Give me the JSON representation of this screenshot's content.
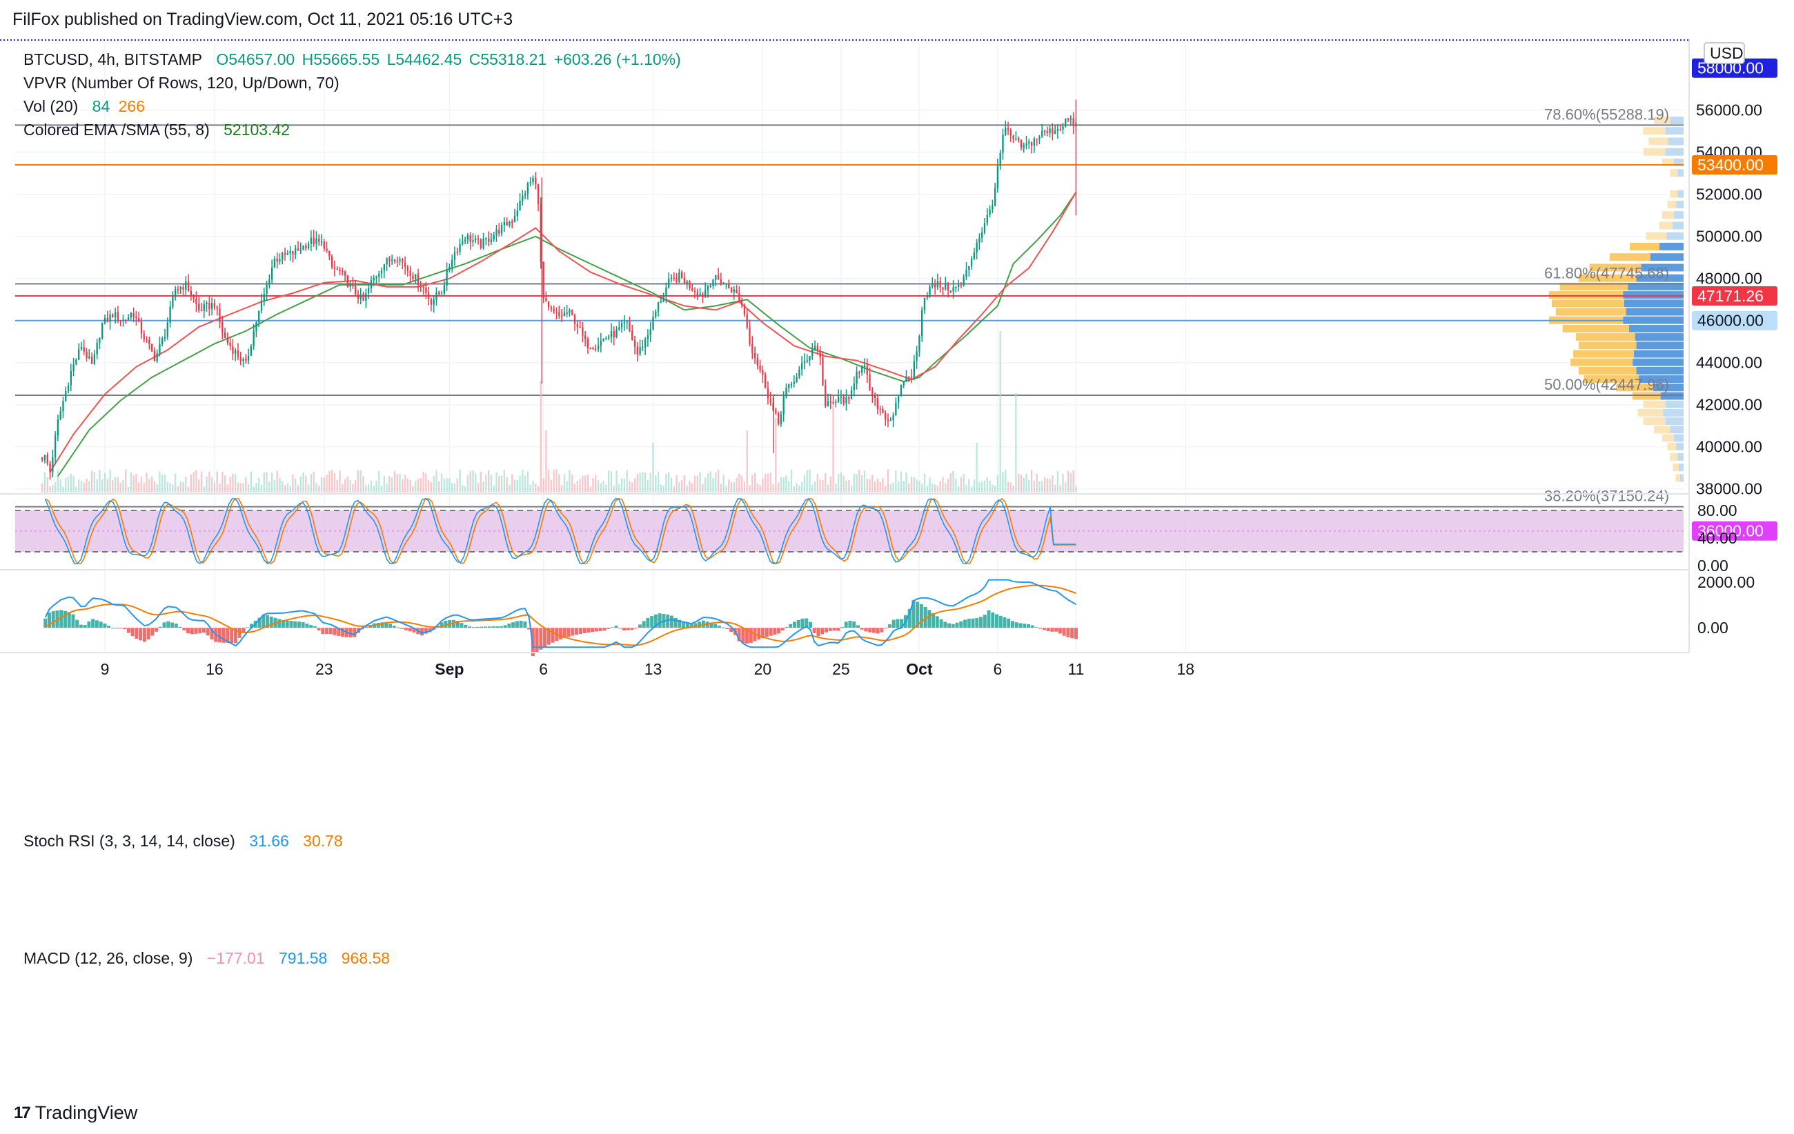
{
  "publisher": "FilFox published on TradingView.com, Oct 11, 2021 05:16 UTC+3",
  "footer": {
    "brand": "TradingView"
  },
  "colors": {
    "up": "#089981",
    "down": "#f23645",
    "ema": "#ef5350",
    "sma": "#43a047",
    "stoch_bg": "#e1bee7"
  },
  "legend": {
    "symbol": "BTCUSD, 4h, BITSTAMP",
    "o": "O54657.00",
    "h": "H55665.55",
    "l": "L54462.45",
    "c": "C55318.21",
    "chg": "+603.26 (+1.10%)",
    "vpvr": "VPVR (Number Of Rows, 120, Up/Down, 70)",
    "vol_label": "Vol (20)",
    "vol_a": "84",
    "vol_b": "266",
    "ema_label": "Colored EMA /SMA (55, 8)",
    "ema_val": "52103.42",
    "stoch_label": "Stoch RSI (3, 3, 14, 14, close)",
    "stoch_k": "31.66",
    "stoch_d": "30.78",
    "macd_label": "MACD (12, 26, close, 9)",
    "macd_hist": "−177.01",
    "macd_line": "791.58",
    "macd_signal": "968.58"
  },
  "chart_data": {
    "type": "candlestick",
    "symbol": "BTCUSD",
    "timeframe": "4h",
    "exchange": "BITSTAMP",
    "currency": "USD",
    "ylim": [
      36000,
      58000
    ],
    "y_ticks": [
      "56000.00",
      "54000.00",
      "52000.00",
      "50000.00",
      "48000.00",
      "46000.00",
      "44000.00",
      "42000.00",
      "40000.00",
      "38000.00"
    ],
    "x_ticks": [
      {
        "label": "9",
        "day": 9
      },
      {
        "label": "16",
        "day": 16
      },
      {
        "label": "23",
        "day": 23
      },
      {
        "label": "Sep",
        "day": 31
      },
      {
        "label": "6",
        "day": 37
      },
      {
        "label": "13",
        "day": 44
      },
      {
        "label": "20",
        "day": 51
      },
      {
        "label": "25",
        "day": 56
      },
      {
        "label": "Oct",
        "day": 61
      },
      {
        "label": "6",
        "day": 66
      },
      {
        "label": "11",
        "day": 71
      },
      {
        "label": "18",
        "day": 78
      }
    ],
    "price_path": [
      [
        5.2,
        39500
      ],
      [
        5.5,
        38800
      ],
      [
        6,
        41200
      ],
      [
        6.8,
        43500
      ],
      [
        7.5,
        44800
      ],
      [
        8.2,
        43800
      ],
      [
        8.8,
        45800
      ],
      [
        9.5,
        46300
      ],
      [
        10.2,
        46000
      ],
      [
        10.8,
        46400
      ],
      [
        11.5,
        45200
      ],
      [
        12.2,
        44200
      ],
      [
        12.8,
        45300
      ],
      [
        13.5,
        47500
      ],
      [
        14.2,
        47700
      ],
      [
        15,
        46500
      ],
      [
        16,
        46800
      ],
      [
        16.6,
        45200
      ],
      [
        17.2,
        44600
      ],
      [
        18,
        43900
      ],
      [
        18.6,
        45800
      ],
      [
        19.2,
        47300
      ],
      [
        19.8,
        48900
      ],
      [
        21,
        49200
      ],
      [
        22.2,
        49800
      ],
      [
        23,
        49600
      ],
      [
        23.5,
        48500
      ],
      [
        24,
        48300
      ],
      [
        24.8,
        47500
      ],
      [
        25.5,
        46900
      ],
      [
        26,
        47800
      ],
      [
        26.8,
        48700
      ],
      [
        27.6,
        49100
      ],
      [
        28.5,
        48300
      ],
      [
        29.3,
        47600
      ],
      [
        29.8,
        46900
      ],
      [
        30.5,
        47400
      ],
      [
        31.2,
        49100
      ],
      [
        32,
        50000
      ],
      [
        33,
        49600
      ],
      [
        34,
        50200
      ],
      [
        35,
        50800
      ],
      [
        36,
        52400
      ],
      [
        36.4,
        52800
      ],
      [
        36.7,
        51600
      ],
      [
        36.9,
        47200
      ],
      [
        37.3,
        46500
      ],
      [
        38,
        46200
      ],
      [
        38.6,
        46400
      ],
      [
        39.1,
        45900
      ],
      [
        39.7,
        44900
      ],
      [
        40.3,
        44800
      ],
      [
        41,
        45200
      ],
      [
        41.6,
        45400
      ],
      [
        42.3,
        45900
      ],
      [
        43,
        44400
      ],
      [
        43.6,
        45200
      ],
      [
        44.3,
        46700
      ],
      [
        45,
        47800
      ],
      [
        45.7,
        48100
      ],
      [
        46.4,
        47600
      ],
      [
        47.1,
        47200
      ],
      [
        47.8,
        48000
      ],
      [
        48.3,
        47900
      ],
      [
        49,
        47500
      ],
      [
        49.4,
        47200
      ],
      [
        49.8,
        46500
      ],
      [
        50.2,
        44900
      ],
      [
        50.6,
        44100
      ],
      [
        51.1,
        43100
      ],
      [
        51.6,
        41800
      ],
      [
        52,
        41100
      ],
      [
        52.4,
        42600
      ],
      [
        52.8,
        42900
      ],
      [
        53.4,
        43700
      ],
      [
        53.9,
        44300
      ],
      [
        54.3,
        44800
      ],
      [
        54.6,
        44600
      ],
      [
        55,
        41900
      ],
      [
        55.5,
        42100
      ],
      [
        56,
        42300
      ],
      [
        56.5,
        42100
      ],
      [
        57,
        43700
      ],
      [
        57.5,
        43700
      ],
      [
        58,
        42300
      ],
      [
        58.6,
        41700
      ],
      [
        59.1,
        41200
      ],
      [
        59.6,
        42100
      ],
      [
        60,
        43200
      ],
      [
        60.5,
        43400
      ],
      [
        60.9,
        44700
      ],
      [
        61.2,
        46900
      ],
      [
        61.6,
        47500
      ],
      [
        62.1,
        47700
      ],
      [
        62.6,
        47600
      ],
      [
        63.2,
        47500
      ],
      [
        63.7,
        47700
      ],
      [
        64.2,
        48700
      ],
      [
        64.7,
        49800
      ],
      [
        65.2,
        50600
      ],
      [
        65.7,
        51700
      ],
      [
        66.1,
        53600
      ],
      [
        66.4,
        55100
      ],
      [
        67,
        54600
      ],
      [
        67.6,
        54200
      ],
      [
        68.2,
        54500
      ],
      [
        68.8,
        54900
      ],
      [
        69.4,
        55000
      ],
      [
        70,
        55200
      ],
      [
        70.4,
        55600
      ],
      [
        70.7,
        55400
      ],
      [
        71,
        55300
      ]
    ],
    "volume_spikes": [
      [
        36.9,
        9
      ],
      [
        37.1,
        5
      ],
      [
        44,
        4
      ],
      [
        50,
        5
      ],
      [
        51.8,
        6
      ],
      [
        55.5,
        7
      ],
      [
        64.6,
        4
      ],
      [
        66.1,
        13
      ],
      [
        67.2,
        8
      ]
    ],
    "ema_path": [
      [
        5.5,
        38800
      ],
      [
        7,
        40600
      ],
      [
        9,
        42500
      ],
      [
        11,
        43800
      ],
      [
        13,
        44600
      ],
      [
        15,
        45700
      ],
      [
        17,
        46300
      ],
      [
        19,
        46900
      ],
      [
        21,
        47300
      ],
      [
        23,
        47800
      ],
      [
        25,
        47900
      ],
      [
        27,
        47600
      ],
      [
        29,
        47600
      ],
      [
        31,
        48000
      ],
      [
        33,
        48800
      ],
      [
        35,
        49700
      ],
      [
        36.5,
        50400
      ],
      [
        38,
        49300
      ],
      [
        40,
        48300
      ],
      [
        42,
        47700
      ],
      [
        44,
        47200
      ],
      [
        46,
        46700
      ],
      [
        48,
        46500
      ],
      [
        49.5,
        46900
      ],
      [
        51,
        45900
      ],
      [
        53,
        44800
      ],
      [
        55,
        44300
      ],
      [
        57,
        44100
      ],
      [
        59,
        43600
      ],
      [
        60.5,
        43200
      ],
      [
        62,
        43800
      ],
      [
        63.5,
        45100
      ],
      [
        65,
        46300
      ],
      [
        66.5,
        47600
      ],
      [
        68,
        48500
      ],
      [
        69.5,
        50200
      ],
      [
        71,
        52100
      ]
    ],
    "sma_path": [
      [
        6,
        38600
      ],
      [
        8,
        40800
      ],
      [
        10,
        42200
      ],
      [
        12,
        43300
      ],
      [
        14,
        44100
      ],
      [
        16,
        44900
      ],
      [
        18,
        45500
      ],
      [
        20,
        46300
      ],
      [
        22,
        47000
      ],
      [
        24,
        47700
      ],
      [
        26,
        47700
      ],
      [
        28,
        47700
      ],
      [
        30,
        48200
      ],
      [
        32,
        48700
      ],
      [
        34,
        49300
      ],
      [
        36.5,
        50000
      ],
      [
        38,
        49400
      ],
      [
        40,
        48700
      ],
      [
        42,
        48000
      ],
      [
        44,
        47300
      ],
      [
        46,
        46500
      ],
      [
        48,
        46700
      ],
      [
        50,
        47000
      ],
      [
        52,
        45800
      ],
      [
        54,
        44700
      ],
      [
        56,
        44200
      ],
      [
        58,
        43600
      ],
      [
        60,
        43100
      ],
      [
        61,
        43300
      ],
      [
        62,
        44000
      ],
      [
        64,
        45300
      ],
      [
        66,
        46700
      ],
      [
        67,
        48700
      ],
      [
        68.5,
        49800
      ],
      [
        70,
        51000
      ],
      [
        71,
        52100
      ]
    ],
    "horizontal_levels": [
      {
        "name": "fib-786",
        "label": "78.60%(55288.19)",
        "price": 55288.19,
        "color": "#787b86"
      },
      {
        "name": "resistance-53400",
        "label": "53400.00",
        "price": 53400,
        "color": "#f57c00"
      },
      {
        "name": "fib-618",
        "label": "61.80%(47745.68)",
        "price": 47745.68,
        "color": "#787b86"
      },
      {
        "name": "level-47171",
        "label": "47171.26",
        "price": 47171.26,
        "color": "#f23645"
      },
      {
        "name": "level-46000",
        "label": "46000.00",
        "price": 46000,
        "color": "#5b9bd5"
      },
      {
        "name": "fib-50",
        "label": "50.00%(42447.96)",
        "price": 42447.96,
        "color": "#787b86"
      },
      {
        "name": "fib-382",
        "label": "38.20%(37150.24)",
        "price": 37150.24,
        "color": "#787b86"
      }
    ],
    "price_markers": [
      {
        "name": "marker-58000",
        "label": "58000.00",
        "price": 58000,
        "color": "#1e22e0"
      },
      {
        "name": "marker-53400",
        "label": "53400.00",
        "price": 53400,
        "color": "#f57c00"
      },
      {
        "name": "marker-47171",
        "label": "47171.26",
        "price": 47171.26,
        "color": "#f23645"
      },
      {
        "name": "marker-46000",
        "label": "46000.00",
        "price": 46000,
        "color": "#bbdefb",
        "text": "#131722"
      },
      {
        "name": "marker-36000",
        "label": "36000.00",
        "price": 36000,
        "color": "#e040fb"
      }
    ],
    "stoch_rsi": {
      "ylim": [
        0,
        100
      ],
      "band": [
        20,
        80
      ],
      "ticks": [
        "80.00",
        "40.00",
        "0.00"
      ],
      "k_last": 31.66,
      "d_last": 30.78
    },
    "macd": {
      "ylim": [
        -900,
        2300
      ],
      "ticks": [
        "2000.00",
        "0.00"
      ],
      "hist_last": -177.01,
      "macd_last": 791.58,
      "signal_last": 968.58
    },
    "vpvr_profile": [
      [
        55500,
        22
      ],
      [
        55000,
        30
      ],
      [
        54500,
        26
      ],
      [
        54000,
        30
      ],
      [
        53500,
        16
      ],
      [
        53000,
        10
      ],
      [
        52000,
        10
      ],
      [
        51500,
        12
      ],
      [
        51000,
        16
      ],
      [
        50500,
        18
      ],
      [
        50000,
        28
      ],
      [
        49500,
        40
      ],
      [
        49000,
        55
      ],
      [
        48500,
        70
      ],
      [
        48000,
        78
      ],
      [
        47600,
        92
      ],
      [
        47200,
        100
      ],
      [
        46800,
        98
      ],
      [
        46400,
        95
      ],
      [
        46000,
        100
      ],
      [
        45600,
        90
      ],
      [
        45200,
        80
      ],
      [
        44800,
        78
      ],
      [
        44400,
        82
      ],
      [
        44000,
        84
      ],
      [
        43600,
        78
      ],
      [
        43200,
        74
      ],
      [
        42800,
        50
      ],
      [
        42400,
        38
      ],
      [
        42000,
        30
      ],
      [
        41600,
        34
      ],
      [
        41200,
        30
      ],
      [
        40800,
        22
      ],
      [
        40400,
        16
      ],
      [
        40000,
        12
      ],
      [
        39500,
        10
      ],
      [
        39000,
        8
      ],
      [
        38500,
        6
      ]
    ]
  }
}
